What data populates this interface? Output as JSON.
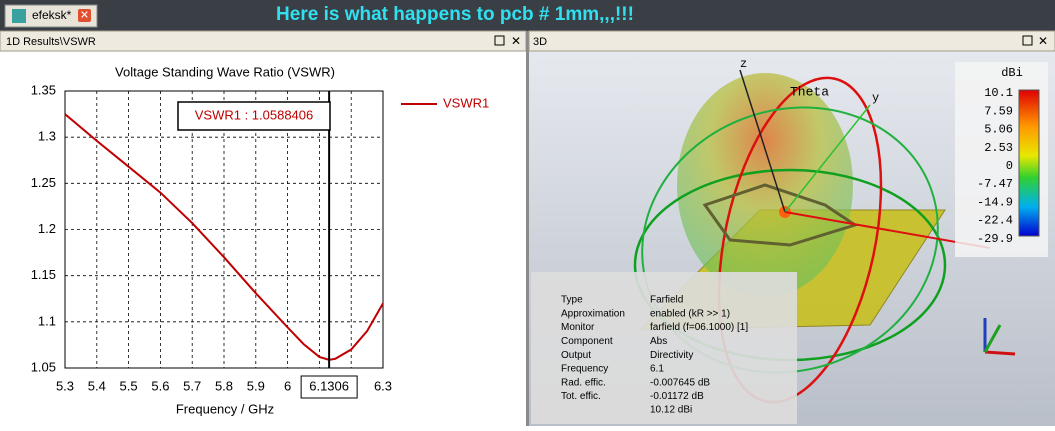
{
  "tab": "efeksk*",
  "banner": "Here is what happens to pcb # 1mm,,,!!!",
  "left_header": "1D Results\\VSWR",
  "right_header": "3D",
  "chart_data": {
    "type": "line",
    "title": "Voltage Standing Wave Ratio (VSWR)",
    "x_label": "Frequency / GHz",
    "xlim": [
      5.3,
      6.3
    ],
    "ylim": [
      1.05,
      1.35
    ],
    "xticks": [
      5.3,
      5.4,
      5.5,
      5.6,
      5.7,
      5.8,
      5.9,
      6,
      6.3
    ],
    "xgrid": [
      6.1,
      6.2
    ],
    "yticks": [
      1.05,
      1.1,
      1.15,
      1.2,
      1.25,
      1.3,
      1.35
    ],
    "grid": true,
    "legend": "top-right-outside",
    "series": [
      {
        "name": "VSWR1",
        "color": "#c00000",
        "x": [
          5.3,
          5.4,
          5.5,
          5.6,
          5.7,
          5.8,
          5.9,
          6.0,
          6.05,
          6.1,
          6.1306,
          6.15,
          6.2,
          6.25,
          6.3
        ],
        "values": [
          1.325,
          1.296,
          1.268,
          1.24,
          1.207,
          1.17,
          1.131,
          1.094,
          1.076,
          1.062,
          1.0588406,
          1.06,
          1.07,
          1.09,
          1.12
        ]
      }
    ],
    "marker": {
      "x": 6.1306,
      "value": 1.0588406,
      "label": "VSWR1 : 1.0588406"
    }
  },
  "view3d": {
    "axes": [
      "z",
      "y",
      "Theta"
    ],
    "colorbar": {
      "unit": "dBi",
      "labels": [
        10.1,
        7.59,
        5.06,
        2.53,
        0,
        -7.47,
        -14.9,
        -22.4,
        -29.9
      ]
    },
    "info": [
      [
        "Type",
        "Farfield"
      ],
      [
        "Approximation",
        "enabled (kR >> 1)"
      ],
      [
        "Monitor",
        "farfield (f=06.1000) [1]"
      ],
      [
        "Component",
        "Abs"
      ],
      [
        "Output",
        "Directivity"
      ],
      [
        "Frequency",
        "6.1"
      ],
      [
        "Rad. effic.",
        "-0.007645 dB"
      ],
      [
        "Tot. effic.",
        "-0.01172 dB"
      ]
    ],
    "info_extra": "10.12 dBi"
  }
}
